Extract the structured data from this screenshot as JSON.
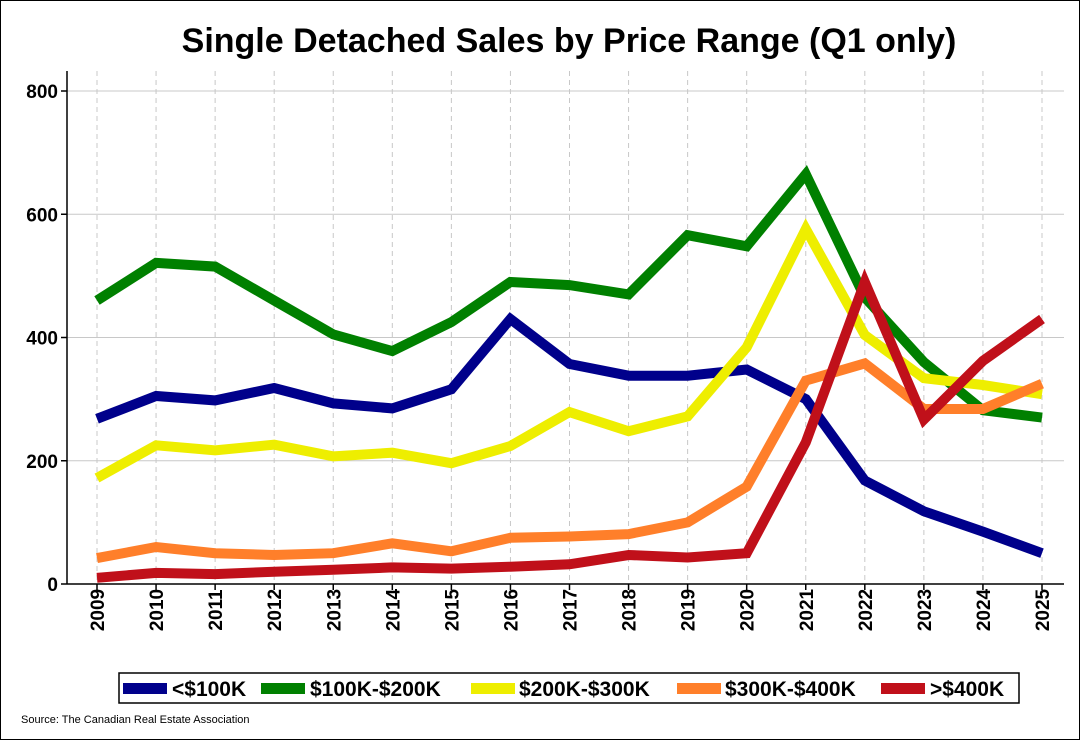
{
  "chart_data": {
    "type": "line",
    "title": "Single Detached Sales by Price Range (Q1 only)",
    "xlabel": "",
    "ylabel": "",
    "source": "Source: The Canadian Real Estate Association",
    "ylim": [
      0,
      800
    ],
    "yticks": [
      "0",
      "200",
      "400",
      "600",
      "800"
    ],
    "grid": true,
    "legend_position": "bottom",
    "categories": [
      "2009",
      "2010",
      "2011",
      "2012",
      "2013",
      "2014",
      "2015",
      "2016",
      "2017",
      "2018",
      "2019",
      "2020",
      "2021",
      "2022",
      "2023",
      "2024",
      "2025"
    ],
    "series": [
      {
        "name": "<$100K",
        "color": "#00008b",
        "values": [
          268,
          305,
          298,
          318,
          293,
          285,
          316,
          430,
          357,
          338,
          338,
          348,
          300,
          168,
          118,
          85,
          50
        ]
      },
      {
        "name": "$100K-$200K",
        "color": "#008000",
        "values": [
          460,
          521,
          515,
          460,
          405,
          378,
          425,
          490,
          485,
          470,
          566,
          548,
          665,
          465,
          360,
          282,
          270
        ]
      },
      {
        "name": "$200K-$300K",
        "color": "#eeee00",
        "values": [
          172,
          225,
          217,
          226,
          207,
          213,
          196,
          224,
          279,
          248,
          272,
          384,
          576,
          404,
          334,
          323,
          308
        ]
      },
      {
        "name": "$300K-$400K",
        "color": "#ff7f2a",
        "values": [
          42,
          60,
          50,
          47,
          50,
          66,
          53,
          75,
          77,
          81,
          100,
          158,
          330,
          358,
          284,
          284,
          325
        ]
      },
      {
        "name": ">$400K",
        "color": "#c0101a",
        "values": [
          10,
          18,
          16,
          20,
          23,
          27,
          25,
          28,
          32,
          47,
          43,
          50,
          230,
          490,
          267,
          362,
          430
        ]
      }
    ]
  }
}
